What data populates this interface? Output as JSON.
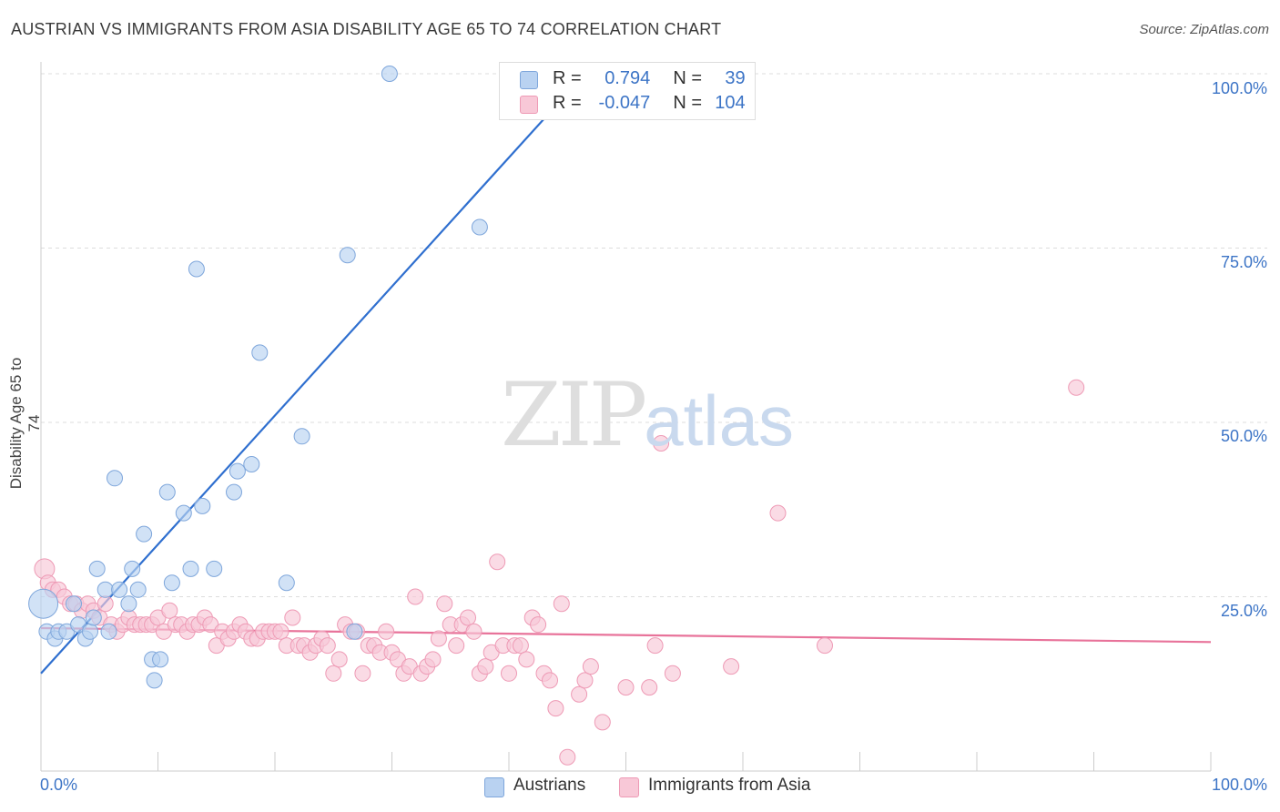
{
  "header": {
    "title": "AUSTRIAN VS IMMIGRANTS FROM ASIA DISABILITY AGE 65 TO 74 CORRELATION CHART",
    "source": "Source: ZipAtlas.com"
  },
  "watermark": {
    "zip": "ZIP",
    "atlas": "atlas"
  },
  "legend": {
    "rows": [
      {
        "r_label": "R =",
        "r_value": "0.794",
        "n_label": "N =",
        "n_value": "39",
        "color": "#a9c8ee"
      },
      {
        "r_label": "R =",
        "r_value": "-0.047",
        "n_label": "N =",
        "n_value": "104",
        "color": "#f6bccf"
      }
    ]
  },
  "bottom_legend": {
    "series1": "Austrians",
    "series2": "Immigrants from Asia"
  },
  "axes": {
    "x_min_label": "0.0%",
    "x_max_label": "100.0%",
    "y_label": "Disability Age 65 to 74",
    "y_ticks": [
      "25.0%",
      "50.0%",
      "75.0%",
      "100.0%"
    ]
  },
  "colors": {
    "blue_fill": "#b9d2f1",
    "blue_stroke": "#7ea6db",
    "blue_line": "#2f6fcf",
    "pink_fill": "#f8c8d7",
    "pink_stroke": "#ee9ab5",
    "pink_line": "#e8739a"
  },
  "chart_data": {
    "type": "scatter",
    "title": "AUSTRIAN VS IMMIGRANTS FROM ASIA DISABILITY AGE 65 TO 74 CORRELATION CHART",
    "xlabel": "",
    "ylabel": "Disability Age 65 to 74",
    "xlim": [
      0,
      100
    ],
    "ylim": [
      0,
      100
    ],
    "series": [
      {
        "name": "Austrians",
        "points": [
          [
            0.2,
            24
          ],
          [
            0.5,
            20
          ],
          [
            1.2,
            19
          ],
          [
            1.5,
            20
          ],
          [
            2.2,
            20
          ],
          [
            2.8,
            24
          ],
          [
            3.2,
            21
          ],
          [
            3.8,
            19
          ],
          [
            4.2,
            20
          ],
          [
            4.5,
            22
          ],
          [
            4.8,
            29
          ],
          [
            5.5,
            26
          ],
          [
            5.8,
            20
          ],
          [
            6.3,
            42
          ],
          [
            6.7,
            26
          ],
          [
            7.5,
            24
          ],
          [
            7.8,
            29
          ],
          [
            8.3,
            26
          ],
          [
            8.8,
            34
          ],
          [
            9.5,
            16
          ],
          [
            9.7,
            13
          ],
          [
            10.2,
            16
          ],
          [
            10.8,
            40
          ],
          [
            11.2,
            27
          ],
          [
            12.2,
            37
          ],
          [
            12.8,
            29
          ],
          [
            13.3,
            72
          ],
          [
            13.8,
            38
          ],
          [
            14.8,
            29
          ],
          [
            16.5,
            40
          ],
          [
            16.8,
            43
          ],
          [
            18.0,
            44
          ],
          [
            18.7,
            60
          ],
          [
            21.0,
            27
          ],
          [
            22.3,
            48
          ],
          [
            26.2,
            74
          ],
          [
            26.8,
            20
          ],
          [
            29.8,
            100
          ],
          [
            37.5,
            78
          ]
        ],
        "trend": {
          "x": [
            0,
            46.5
          ],
          "y": [
            14.0,
            100
          ]
        }
      },
      {
        "name": "Immigrants from Asia",
        "points": [
          [
            0.3,
            29
          ],
          [
            0.6,
            27
          ],
          [
            1.0,
            26
          ],
          [
            1.5,
            26
          ],
          [
            2.0,
            25
          ],
          [
            2.5,
            24
          ],
          [
            3.0,
            24
          ],
          [
            3.5,
            23
          ],
          [
            4.0,
            24
          ],
          [
            4.5,
            23
          ],
          [
            5.0,
            22
          ],
          [
            5.5,
            24
          ],
          [
            6.0,
            21
          ],
          [
            6.5,
            20
          ],
          [
            7.0,
            21
          ],
          [
            7.5,
            22
          ],
          [
            8.0,
            21
          ],
          [
            8.5,
            21
          ],
          [
            9.0,
            21
          ],
          [
            9.5,
            21
          ],
          [
            10.0,
            22
          ],
          [
            10.5,
            20
          ],
          [
            11.0,
            23
          ],
          [
            11.5,
            21
          ],
          [
            12.0,
            21
          ],
          [
            12.5,
            20
          ],
          [
            13.0,
            21
          ],
          [
            13.5,
            21
          ],
          [
            14.0,
            22
          ],
          [
            14.5,
            21
          ],
          [
            15.0,
            18
          ],
          [
            15.5,
            20
          ],
          [
            16.0,
            19
          ],
          [
            16.5,
            20
          ],
          [
            17.0,
            21
          ],
          [
            17.5,
            20
          ],
          [
            18.0,
            19
          ],
          [
            18.5,
            19
          ],
          [
            19.0,
            20
          ],
          [
            19.5,
            20
          ],
          [
            20.0,
            20
          ],
          [
            20.5,
            20
          ],
          [
            21.0,
            18
          ],
          [
            21.5,
            22
          ],
          [
            22.0,
            18
          ],
          [
            22.5,
            18
          ],
          [
            23.0,
            17
          ],
          [
            23.5,
            18
          ],
          [
            24.0,
            19
          ],
          [
            24.5,
            18
          ],
          [
            25.0,
            14
          ],
          [
            25.5,
            16
          ],
          [
            26.0,
            21
          ],
          [
            26.5,
            20
          ],
          [
            27.0,
            20
          ],
          [
            27.5,
            14
          ],
          [
            28.0,
            18
          ],
          [
            28.5,
            18
          ],
          [
            29.0,
            17
          ],
          [
            29.5,
            20
          ],
          [
            30.0,
            17
          ],
          [
            30.5,
            16
          ],
          [
            31.0,
            14
          ],
          [
            31.5,
            15
          ],
          [
            32.0,
            25
          ],
          [
            32.5,
            14
          ],
          [
            33.0,
            15
          ],
          [
            33.5,
            16
          ],
          [
            34.0,
            19
          ],
          [
            34.5,
            24
          ],
          [
            35.0,
            21
          ],
          [
            35.5,
            18
          ],
          [
            36.0,
            21
          ],
          [
            36.5,
            22
          ],
          [
            37.0,
            20
          ],
          [
            37.5,
            14
          ],
          [
            38.0,
            15
          ],
          [
            38.5,
            17
          ],
          [
            39.0,
            30
          ],
          [
            39.5,
            18
          ],
          [
            40.0,
            14
          ],
          [
            40.5,
            18
          ],
          [
            41.0,
            18
          ],
          [
            41.5,
            16
          ],
          [
            42.0,
            22
          ],
          [
            42.5,
            21
          ],
          [
            43.0,
            14
          ],
          [
            43.5,
            13
          ],
          [
            44.0,
            9
          ],
          [
            44.5,
            24
          ],
          [
            45.0,
            2
          ],
          [
            46.0,
            11
          ],
          [
            46.5,
            13
          ],
          [
            47.0,
            15
          ],
          [
            48.0,
            7
          ],
          [
            50.0,
            12
          ],
          [
            52.0,
            12
          ],
          [
            52.5,
            18
          ],
          [
            53.0,
            47
          ],
          [
            54.0,
            14
          ],
          [
            59.0,
            15
          ],
          [
            63.0,
            37
          ],
          [
            67.0,
            18
          ],
          [
            88.5,
            55
          ]
        ],
        "trend": {
          "x": [
            0,
            100
          ],
          "y": [
            20.5,
            18.5
          ]
        }
      }
    ]
  }
}
